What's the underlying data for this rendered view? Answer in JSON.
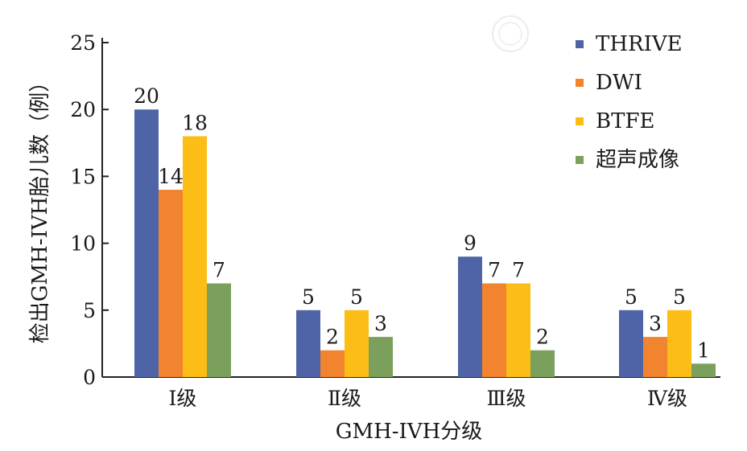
{
  "chart_data": {
    "type": "bar",
    "title": "",
    "xlabel": "GMH-IVH分级",
    "ylabel": "检出GMH-IVH胎儿数（例）",
    "categories": [
      "Ⅰ级",
      "Ⅱ级",
      "Ⅲ级",
      "Ⅳ级"
    ],
    "series": [
      {
        "name": "THRIVE",
        "color": "#4e64a6",
        "values": [
          20,
          5,
          9,
          5
        ]
      },
      {
        "name": "DWI",
        "color": "#f28430",
        "values": [
          14,
          2,
          7,
          3
        ]
      },
      {
        "name": "BTFE",
        "color": "#fbbd16",
        "values": [
          18,
          5,
          7,
          5
        ]
      },
      {
        "name": "超声成像",
        "color": "#7ba05b",
        "values": [
          7,
          3,
          2,
          1
        ]
      }
    ],
    "ylim": [
      0,
      25
    ],
    "yticks": [
      0,
      5,
      10,
      15,
      20,
      25
    ],
    "grid": false,
    "legend_position": "top-right",
    "data_labels": true
  }
}
